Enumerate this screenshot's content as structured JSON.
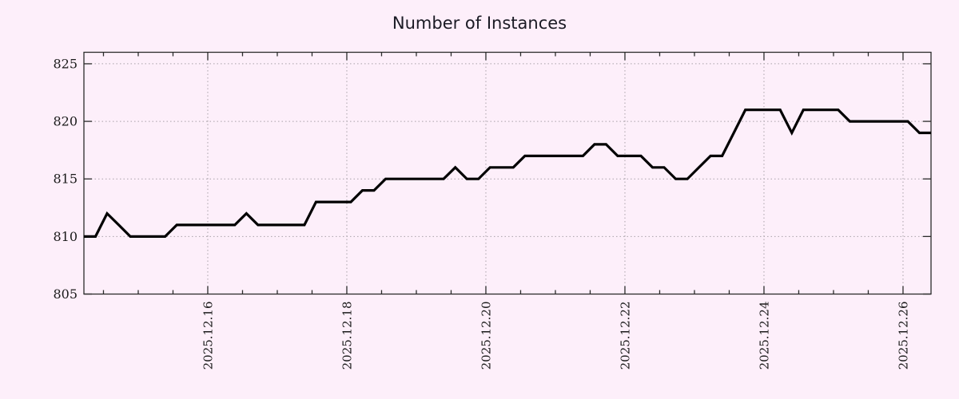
{
  "chart_data": {
    "type": "line",
    "title": "Number of Instances",
    "background_color": "#fdeffa",
    "line_color": "#000000",
    "grid": "dotted",
    "grid_color": "#a9a2a9",
    "axis_color": "#2b2b2b",
    "text_color": "#1a1a1a",
    "legend": "none",
    "ylim": [
      805,
      826
    ],
    "y_ticks": [
      805,
      810,
      815,
      820,
      825
    ],
    "x_axis": {
      "tick_labels": [
        "2025.12.16",
        "2025.12.18",
        "2025.12.20",
        "2025.12.22",
        "2025.12.24",
        "2025.12.26"
      ],
      "first_tick_fraction": 0.1462,
      "major_spacing_fraction": 0.16415,
      "minor_divisions": 4
    },
    "series": [
      {
        "name": "instances",
        "values": [
          810,
          810,
          812,
          811,
          810,
          810,
          810,
          810,
          811,
          811,
          811,
          811,
          811,
          811,
          812,
          811,
          811,
          811,
          811,
          811,
          813,
          813,
          813,
          813,
          814,
          814,
          815,
          815,
          815,
          815,
          815,
          815,
          816,
          815,
          815,
          816,
          816,
          816,
          817,
          817,
          817,
          817,
          817,
          817,
          818,
          818,
          817,
          817,
          817,
          816,
          816,
          815,
          815,
          816,
          817,
          817,
          819,
          821,
          821,
          821,
          821,
          819,
          821,
          821,
          821,
          821,
          820,
          820,
          820,
          820,
          820,
          820,
          819,
          819
        ]
      }
    ]
  }
}
